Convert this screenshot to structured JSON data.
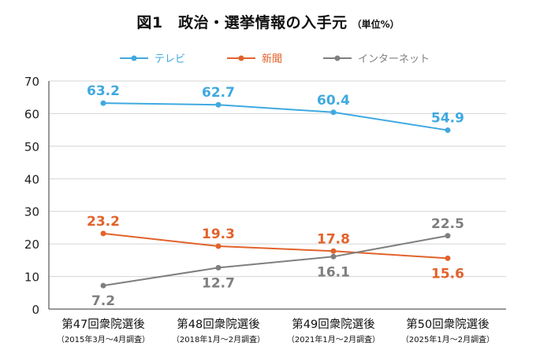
{
  "chart_data": {
    "type": "line",
    "title": "図1　政治・選挙情報の入手元",
    "subtitle": "（単位%）",
    "categories": [
      "第47回衆院選後",
      "第48回衆院選後",
      "第49回衆院選後",
      "第50回衆院選後"
    ],
    "category_sublabels": [
      "（2015年3月〜4月調査）",
      "（2018年1月〜2月調査）",
      "（2021年1月〜2月調査）",
      "（2025年1月〜2月調査）"
    ],
    "series": [
      {
        "name": "テレビ",
        "color": "#3fa9e0",
        "values": [
          63.2,
          62.7,
          60.4,
          54.9
        ],
        "label_position": "above"
      },
      {
        "name": "新聞",
        "color": "#e2622b",
        "values": [
          23.2,
          19.3,
          17.8,
          15.6
        ],
        "label_position": "above-except-last"
      },
      {
        "name": "インターネット",
        "color": "#7f7f7f",
        "values": [
          7.2,
          12.7,
          16.1,
          22.5
        ],
        "label_position": "below-except-last"
      }
    ],
    "ylim": [
      0,
      70
    ],
    "yticks": [
      0,
      10,
      20,
      30,
      40,
      50,
      60,
      70
    ],
    "grid": true,
    "legend": "top-center",
    "xlabel": "",
    "ylabel": ""
  }
}
